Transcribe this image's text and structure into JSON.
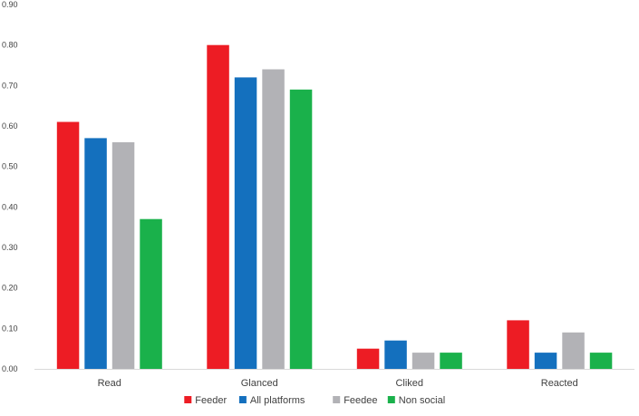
{
  "chart_data": {
    "type": "bar",
    "title": "",
    "xlabel": "",
    "ylabel": "",
    "categories": [
      "Read",
      "Glanced",
      "Cliked",
      "Reacted"
    ],
    "series": [
      {
        "name": "Feeder",
        "color": "#ed1c24",
        "values": [
          0.61,
          0.8,
          0.05,
          0.12
        ]
      },
      {
        "name": "All platforms",
        "color": "#1470be",
        "values": [
          0.57,
          0.72,
          0.07,
          0.04
        ]
      },
      {
        "name": "Feedee",
        "color": "#b2b2b6",
        "values": [
          0.56,
          0.74,
          0.04,
          0.09
        ]
      },
      {
        "name": "Non social",
        "color": "#1ab14b",
        "values": [
          0.37,
          0.69,
          0.04,
          0.04
        ]
      }
    ],
    "ylim": [
      0,
      0.9
    ],
    "yticks": [
      "0.00",
      "0.10",
      "0.20",
      "0.30",
      "0.40",
      "0.50",
      "0.60",
      "0.70",
      "0.80",
      "0.90"
    ],
    "grid": false,
    "legend_position": "bottom"
  }
}
